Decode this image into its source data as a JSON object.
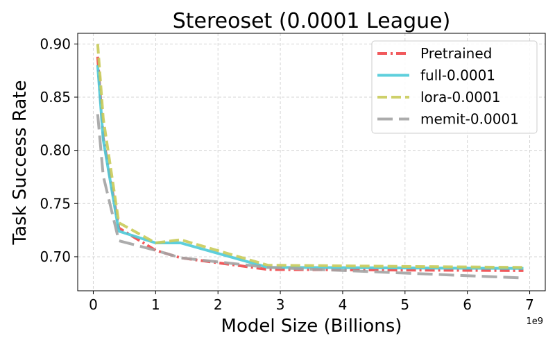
{
  "chart_data": {
    "type": "line",
    "title": "Stereoset (0.0001 League)",
    "xlabel": "Model Size (Billions)",
    "ylabel": "Task Success Rate",
    "x_offset_label": "1e9",
    "xlim": [
      -0.25,
      7.25
    ],
    "ylim": [
      0.668,
      0.91
    ],
    "xticks": [
      0,
      1,
      2,
      3,
      4,
      5,
      6,
      7
    ],
    "yticks": [
      0.7,
      0.75,
      0.8,
      0.85,
      0.9
    ],
    "ytick_labels": [
      "0.70",
      "0.75",
      "0.80",
      "0.85",
      "0.90"
    ],
    "xtick_labels": [
      "0",
      "1",
      "2",
      "3",
      "4",
      "5",
      "6",
      "7"
    ],
    "grid": true,
    "legend_position": "top-right",
    "series": [
      {
        "name": "Pretrained",
        "color": "#f0474a",
        "dash": "dashdot",
        "x": [
          0.07,
          0.16,
          0.41,
          1.0,
          1.4,
          2.8,
          6.9
        ],
        "y": [
          0.888,
          0.812,
          0.727,
          0.706,
          0.699,
          0.688,
          0.687
        ]
      },
      {
        "name": "full-0.0001",
        "color": "#4dcad8",
        "dash": "solid",
        "x": [
          0.07,
          0.16,
          0.41,
          1.0,
          1.4,
          2.8,
          6.9
        ],
        "y": [
          0.88,
          0.81,
          0.724,
          0.713,
          0.713,
          0.69,
          0.689
        ]
      },
      {
        "name": "lora-0.0001",
        "color": "#c9cb5a",
        "dash": "dashed",
        "x": [
          0.07,
          0.16,
          0.41,
          1.0,
          1.4,
          2.8,
          6.9
        ],
        "y": [
          0.9,
          0.83,
          0.732,
          0.713,
          0.716,
          0.692,
          0.69
        ]
      },
      {
        "name": "memit-0.0001",
        "color": "#a3a3a3",
        "dash": "longdash",
        "x": [
          0.07,
          0.16,
          0.41,
          1.0,
          1.4,
          2.8,
          6.9
        ],
        "y": [
          0.834,
          0.776,
          0.715,
          0.706,
          0.699,
          0.69,
          0.68
        ]
      }
    ]
  }
}
